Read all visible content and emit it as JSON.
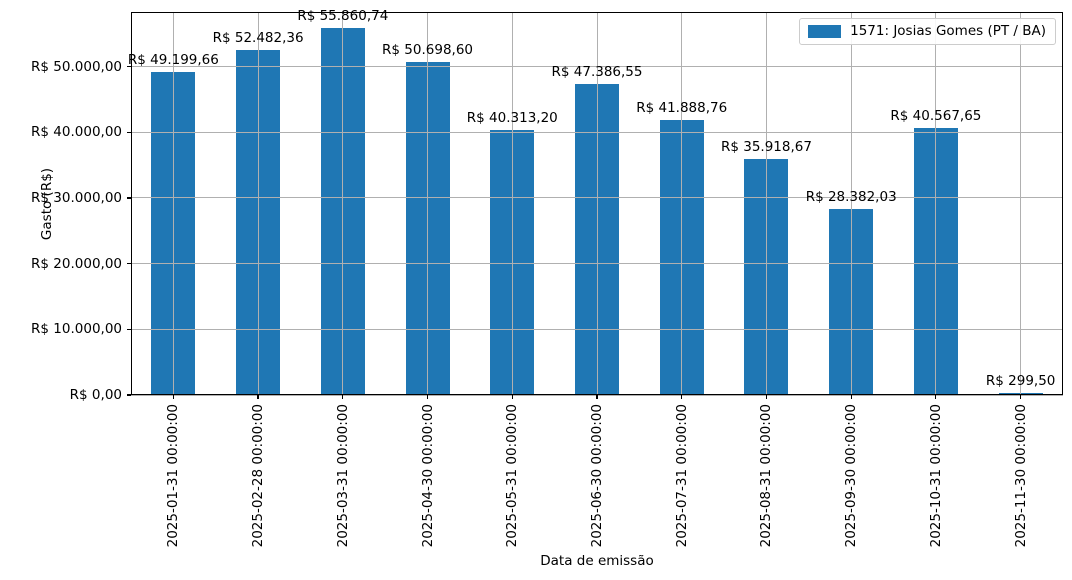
{
  "figure": {
    "background": "#ffffff",
    "bar_color": "#1f77b4",
    "grid_color": "#b0b0b0",
    "spine_color": "#000000"
  },
  "chart_data": {
    "type": "bar",
    "title": "",
    "xlabel": "Data de emissão",
    "ylabel": "Gasto (R$)",
    "grid": true,
    "grid_on_top": true,
    "legend": {
      "position": "upper right",
      "entries": [
        {
          "label": "1571: Josias Gomes (PT / BA)",
          "color": "#1f77b4"
        }
      ]
    },
    "categories": [
      "2025-01-31 00:00:00",
      "2025-02-28 00:00:00",
      "2025-03-31 00:00:00",
      "2025-04-30 00:00:00",
      "2025-05-31 00:00:00",
      "2025-06-30 00:00:00",
      "2025-07-31 00:00:00",
      "2025-08-31 00:00:00",
      "2025-09-30 00:00:00",
      "2025-10-31 00:00:00",
      "2025-11-30 00:00:00"
    ],
    "values": [
      49199.66,
      52482.36,
      55860.74,
      50698.6,
      40313.2,
      47386.55,
      41888.76,
      35918.67,
      28382.03,
      40567.65,
      299.5
    ],
    "value_labels": [
      "R$ 49.199,66",
      "R$ 52.482,36",
      "R$ 55.860,74",
      "R$ 50.698,60",
      "R$ 40.313,20",
      "R$ 47.386,55",
      "R$ 41.888,76",
      "R$ 35.918,67",
      "R$ 28.382,03",
      "R$ 40.567,65",
      "R$ 299,50"
    ],
    "y_ticks": {
      "values": [
        0,
        10000,
        20000,
        30000,
        40000,
        50000
      ],
      "labels": [
        "R$ 0,00",
        "R$ 10.000,00",
        "R$ 20.000,00",
        "R$ 30.000,00",
        "R$ 40.000,00",
        "R$ 50.000,00"
      ]
    },
    "ylim": [
      0,
      58300
    ]
  }
}
